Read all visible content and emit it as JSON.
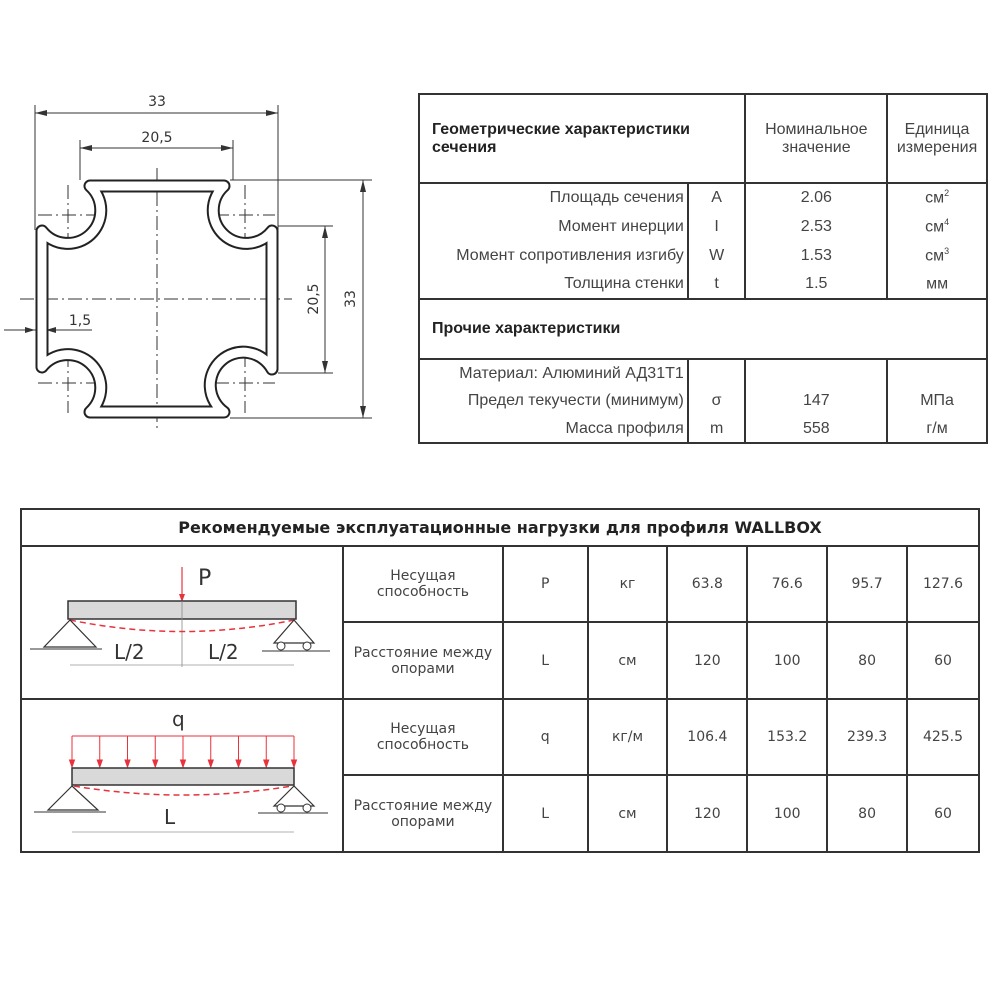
{
  "drawing": {
    "dim_width": "33",
    "dim_inner_width": "20,5",
    "dim_height": "33",
    "dim_inner_height": "20,5",
    "dim_wall": "1,5"
  },
  "geometry_table": {
    "header": {
      "title": "Геометрические характеристики сечения",
      "value": "Номинальное значение",
      "unit": "Единица измерения"
    },
    "rows": [
      {
        "label": "Площадь сечения",
        "symbol": "A",
        "value": "2.06",
        "unit": "см",
        "unit_sup": "2"
      },
      {
        "label": "Момент инерции",
        "symbol": "I",
        "value": "2.53",
        "unit": "см",
        "unit_sup": "4"
      },
      {
        "label": "Момент сопротивления изгибу",
        "symbol": "W",
        "value": "1.53",
        "unit": "см",
        "unit_sup": "3"
      },
      {
        "label": "Толщина стенки",
        "symbol": "t",
        "value": "1.5",
        "unit": "мм",
        "unit_sup": ""
      }
    ],
    "other_title": "Прочие характеристики",
    "other_rows": [
      {
        "label": "Материал: Алюминий АД31Т1",
        "symbol": "",
        "value": "",
        "unit": ""
      },
      {
        "label": "Предел текучести (минимум)",
        "symbol": "σ",
        "value": "147",
        "unit": "МПа"
      },
      {
        "label": "Масса профиля",
        "symbol": "m",
        "value": "558",
        "unit": "г/м"
      }
    ]
  },
  "load_table": {
    "title": "Рекомендуемые эксплуатационные нагрузки для профиля WALLBOX",
    "point_load": {
      "diagram": {
        "force": "P",
        "half_span": "L/2"
      },
      "rows": [
        {
          "label": "Несущая способность",
          "symbol": "P",
          "unit": "кг",
          "values": [
            "63.8",
            "76.6",
            "95.7",
            "127.6"
          ]
        },
        {
          "label": "Расстояние между опорами",
          "symbol": "L",
          "unit": "см",
          "values": [
            "120",
            "100",
            "80",
            "60"
          ]
        }
      ]
    },
    "distributed_load": {
      "diagram": {
        "force": "q",
        "span": "L"
      },
      "rows": [
        {
          "label": "Несущая способность",
          "symbol": "q",
          "unit": "кг/м",
          "values": [
            "106.4",
            "153.2",
            "239.3",
            "425.5"
          ]
        },
        {
          "label": "Расстояние между опорами",
          "symbol": "L",
          "unit": "см",
          "values": [
            "120",
            "100",
            "80",
            "60"
          ]
        }
      ]
    }
  },
  "colors": {
    "line": "#333333",
    "load_arrow": "#e8323c",
    "beam_fill": "#d9d9d9"
  }
}
